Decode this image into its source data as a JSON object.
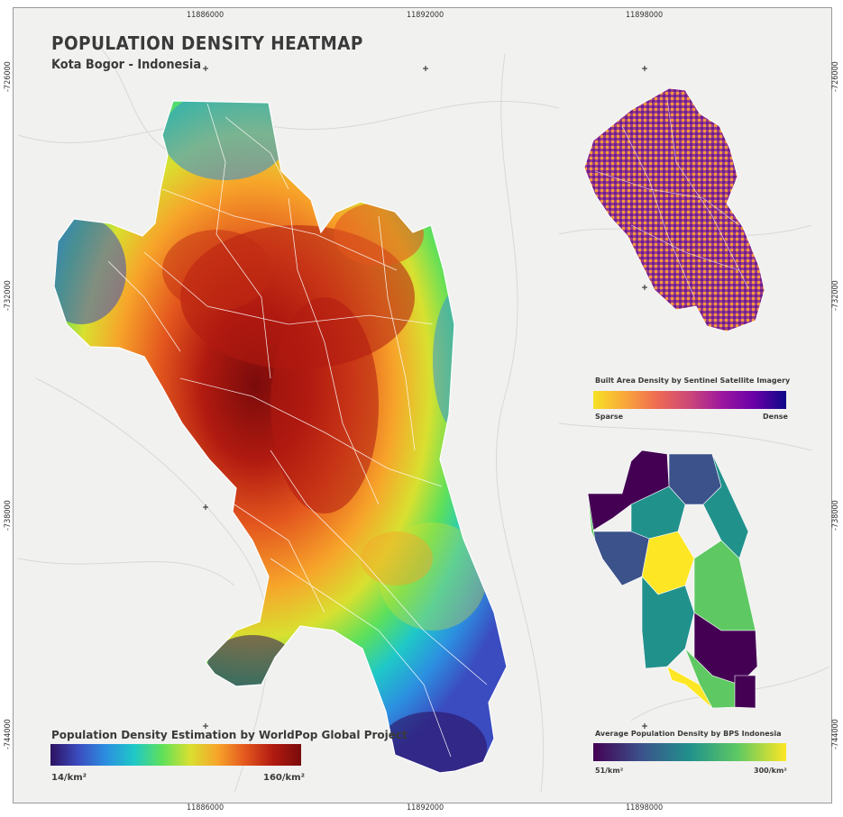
{
  "title": "POPULATION DENSITY HEATMAP",
  "subtitle": "Kota Bogor - Indonesia",
  "coords": {
    "x_top": [
      "11886000",
      "11892000",
      "11898000"
    ],
    "x_bottom": [
      "11886000",
      "11892000",
      "11898000"
    ],
    "y_left": [
      "-726000",
      "-732000",
      "-738000",
      "-744000"
    ],
    "y_right": [
      "-726000",
      "-732000",
      "-738000",
      "-744000"
    ]
  },
  "legends": {
    "main": {
      "title": "Population Density Estimation by WorldPop Global Project",
      "min_label": "14/km²",
      "max_label": "160/km²",
      "colors": [
        "#2c1160",
        "#3b4cc0",
        "#2c8fe0",
        "#1fc8c8",
        "#5ee05a",
        "#d8e030",
        "#f7a42a",
        "#e3561e",
        "#b01a10",
        "#7a0b0b"
      ]
    },
    "built": {
      "title": "Built Area Density by Sentinel Satellite Imagery",
      "min_label": "Sparse",
      "max_label": "Dense",
      "colors": [
        "#f7e225",
        "#f9a63b",
        "#ee6a53",
        "#cc4778",
        "#9c179e",
        "#6a00a8",
        "#0d0887"
      ]
    },
    "bps": {
      "title": "Average Population Density by BPS Indonesia",
      "min_label": "51/km²",
      "max_label": "300/km²",
      "colors": [
        "#440154",
        "#3b528b",
        "#21918c",
        "#5ec962",
        "#fde725"
      ]
    }
  }
}
